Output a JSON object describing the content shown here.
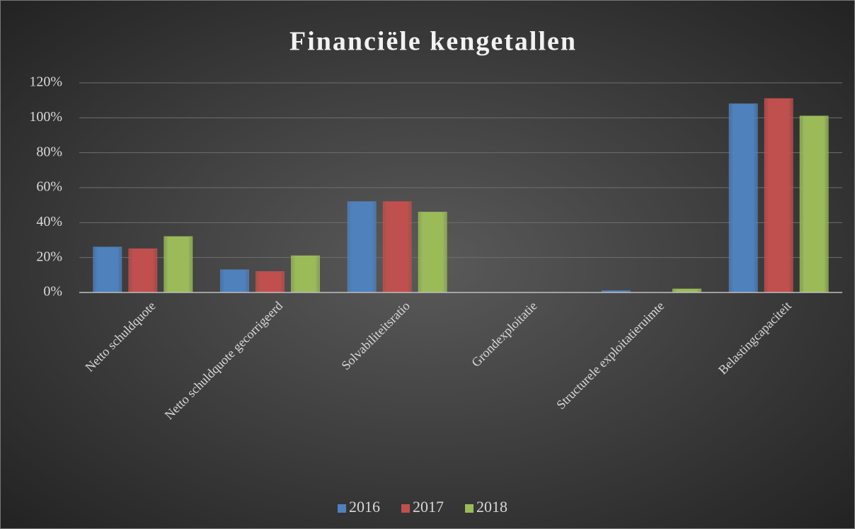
{
  "chart_data": {
    "type": "bar",
    "title": "Financiële kengetallen",
    "categories": [
      "Netto schuldquote",
      "Netto schuldquote gecorrigeerd",
      "Solvabiliteitsratio",
      "Grondexploitatie",
      "Structurele exploitatieruimte",
      "Belastingcapaciteit"
    ],
    "series": [
      {
        "name": "2016",
        "color": "#4f81bd",
        "values": [
          26,
          13,
          52,
          0,
          1,
          108
        ]
      },
      {
        "name": "2017",
        "color": "#c0504d",
        "values": [
          25,
          12,
          52,
          0,
          0,
          111
        ]
      },
      {
        "name": "2018",
        "color": "#9bbb59",
        "values": [
          32,
          21,
          46,
          0,
          2,
          101
        ]
      }
    ],
    "ylim": [
      0,
      120
    ],
    "yticks": [
      {
        "value": 0,
        "label": "0%"
      },
      {
        "value": 20,
        "label": "20%"
      },
      {
        "value": 40,
        "label": "40%"
      },
      {
        "value": 60,
        "label": "60%"
      },
      {
        "value": 80,
        "label": "80%"
      },
      {
        "value": 100,
        "label": "100%"
      },
      {
        "value": 120,
        "label": "120%"
      }
    ],
    "grid": true,
    "legend": "bottom"
  }
}
